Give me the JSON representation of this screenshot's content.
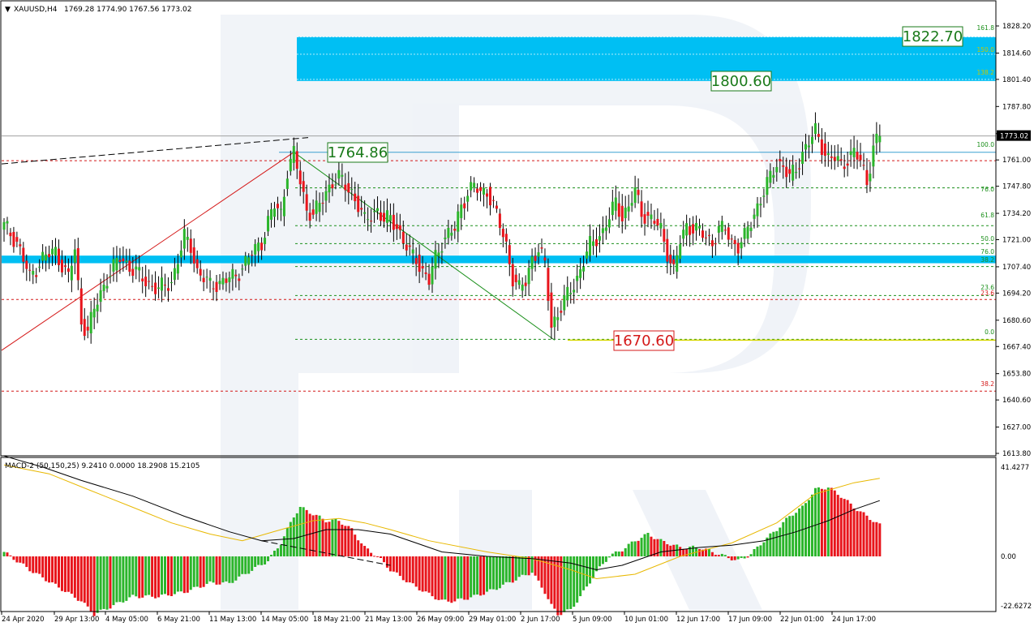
{
  "header": {
    "symbol": "XAUUSD,H4",
    "ohlc": "1769.28 1774.90 1767.56 1773.02"
  },
  "macd_header": "MACD-2 (50,150,25) 9.2410 0.0000 18.2908 15.2105",
  "colors": {
    "bull": "#2bb52b",
    "bear": "#e8141b",
    "target_zone": "#00bff3",
    "support_band": "#00bff3",
    "fib_green": "#1a8f1a",
    "fib_red": "#d41818",
    "yellow_line": "#d8d800",
    "macd_signal": "#e8b800",
    "macd_main": "#000000"
  },
  "labels": {
    "target_high": "1822.70",
    "target_low": "1800.60",
    "swing_high": "1764.86",
    "swing_low": "1670.60",
    "price_tag": "1773.02"
  },
  "fib_right_labels": [
    "161.8",
    "150.0",
    "138.2",
    "100.0",
    "76.0",
    "61.8",
    "50.0",
    "76.0",
    "38.2",
    "23.6",
    "23.6",
    "0.0",
    "38.2"
  ],
  "chart_data": {
    "type": "candlestick",
    "symbol": "XAUUSD",
    "timeframe": "H4",
    "y_ticks": [
      1828.2,
      1814.6,
      1801.4,
      1787.8,
      1774.2,
      1761.0,
      1747.8,
      1734.2,
      1721.0,
      1707.4,
      1694.2,
      1680.6,
      1667.4,
      1653.8,
      1640.6,
      1627.0,
      1613.8
    ],
    "y_tick_labels": [
      "1828.20",
      "1814.60",
      "1801.40",
      "1787.80",
      "1774.20",
      "1761.00",
      "1747.80",
      "1734.20",
      "1721.00",
      "1707.40",
      "1694.20",
      "1680.60",
      "1667.40",
      "1653.80",
      "1640.60",
      "1627.00",
      "1613.80"
    ],
    "x_labels": [
      "24 Apr 2020",
      "29 Apr 13:00",
      "4 May 05:00",
      "6 May 21:00",
      "11 May 13:00",
      "14 May 05:00",
      "18 May 21:00",
      "21 May 13:00",
      "26 May 09:00",
      "29 May 01:00",
      "2 Jun 17:00",
      "5 Jun 09:00",
      "10 Jun 01:00",
      "12 Jun 17:00",
      "17 Jun 09:00",
      "22 Jun 01:00",
      "24 Jun 17:00"
    ],
    "close_path": [
      [
        0,
        1728
      ],
      [
        4,
        1720
      ],
      [
        8,
        1702
      ],
      [
        12,
        1712
      ],
      [
        16,
        1715
      ],
      [
        20,
        1702
      ],
      [
        22,
        1716
      ],
      [
        24,
        1680
      ],
      [
        26,
        1675
      ],
      [
        28,
        1686
      ],
      [
        32,
        1702
      ],
      [
        36,
        1712
      ],
      [
        40,
        1706
      ],
      [
        44,
        1700
      ],
      [
        48,
        1696
      ],
      [
        52,
        1700
      ],
      [
        56,
        1722
      ],
      [
        58,
        1718
      ],
      [
        60,
        1705
      ],
      [
        64,
        1698
      ],
      [
        68,
        1700
      ],
      [
        72,
        1703
      ],
      [
        76,
        1712
      ],
      [
        80,
        1720
      ],
      [
        82,
        1730
      ],
      [
        84,
        1738
      ],
      [
        86,
        1734
      ],
      [
        88,
        1756
      ],
      [
        90,
        1764
      ],
      [
        92,
        1750
      ],
      [
        94,
        1736
      ],
      [
        96,
        1734
      ],
      [
        98,
        1738
      ],
      [
        100,
        1745
      ],
      [
        102,
        1750
      ],
      [
        104,
        1752
      ],
      [
        106,
        1748
      ],
      [
        108,
        1745
      ],
      [
        110,
        1738
      ],
      [
        112,
        1730
      ],
      [
        114,
        1734
      ],
      [
        116,
        1736
      ],
      [
        118,
        1730
      ],
      [
        120,
        1732
      ],
      [
        122,
        1728
      ],
      [
        124,
        1720
      ],
      [
        126,
        1714
      ],
      [
        128,
        1712
      ],
      [
        130,
        1705
      ],
      [
        132,
        1700
      ],
      [
        134,
        1712
      ],
      [
        136,
        1720
      ],
      [
        138,
        1724
      ],
      [
        140,
        1726
      ],
      [
        142,
        1738
      ],
      [
        144,
        1745
      ],
      [
        146,
        1748
      ],
      [
        148,
        1744
      ],
      [
        150,
        1746
      ],
      [
        152,
        1738
      ],
      [
        154,
        1728
      ],
      [
        156,
        1718
      ],
      [
        158,
        1702
      ],
      [
        160,
        1696
      ],
      [
        162,
        1700
      ],
      [
        164,
        1712
      ],
      [
        166,
        1716
      ],
      [
        168,
        1708
      ],
      [
        170,
        1678
      ],
      [
        172,
        1684
      ],
      [
        174,
        1690
      ],
      [
        176,
        1696
      ],
      [
        178,
        1702
      ],
      [
        180,
        1710
      ],
      [
        182,
        1718
      ],
      [
        184,
        1722
      ],
      [
        186,
        1725
      ],
      [
        188,
        1732
      ],
      [
        190,
        1740
      ],
      [
        192,
        1733
      ],
      [
        194,
        1737
      ],
      [
        196,
        1745
      ],
      [
        198,
        1735
      ],
      [
        200,
        1732
      ],
      [
        202,
        1730
      ],
      [
        204,
        1726
      ],
      [
        206,
        1715
      ],
      [
        208,
        1705
      ],
      [
        210,
        1720
      ],
      [
        212,
        1728
      ],
      [
        214,
        1727
      ],
      [
        216,
        1725
      ],
      [
        218,
        1722
      ],
      [
        220,
        1720
      ],
      [
        222,
        1726
      ],
      [
        224,
        1726
      ],
      [
        226,
        1720
      ],
      [
        228,
        1718
      ],
      [
        230,
        1722
      ],
      [
        232,
        1730
      ],
      [
        234,
        1738
      ],
      [
        236,
        1745
      ],
      [
        238,
        1752
      ],
      [
        240,
        1760
      ],
      [
        242,
        1758
      ],
      [
        244,
        1752
      ],
      [
        246,
        1756
      ],
      [
        248,
        1765
      ],
      [
        250,
        1770
      ],
      [
        252,
        1775
      ],
      [
        254,
        1768
      ],
      [
        256,
        1762
      ],
      [
        258,
        1762
      ],
      [
        260,
        1758
      ],
      [
        262,
        1762
      ],
      [
        264,
        1765
      ],
      [
        266,
        1760
      ],
      [
        268,
        1750
      ],
      [
        270,
        1768
      ],
      [
        272,
        1773
      ]
    ],
    "total_bars": 273,
    "target_zone": {
      "top": 1822.7,
      "bottom": 1800.6
    },
    "swing_high": 1764.86,
    "swing_low": 1670.6,
    "support_band": {
      "top": 1713,
      "bottom": 1710
    },
    "fib_green_levels": [
      1747.0,
      1728.0,
      1719.0,
      1707.5,
      1693.0,
      1671.0
    ],
    "fib_red_levels": [
      1760.6,
      1691.0,
      1645.0
    ],
    "macd": {
      "y_ticks": [
        41.4277,
        0.0,
        -22.6272
      ],
      "y_tick_labels": [
        "41.4277",
        "0.00",
        "-22.6272"
      ],
      "histogram": [
        [
          0,
          2
        ],
        [
          8,
          -6
        ],
        [
          16,
          -13
        ],
        [
          24,
          -20
        ],
        [
          28,
          -26
        ],
        [
          34,
          -22
        ],
        [
          40,
          -18
        ],
        [
          48,
          -18
        ],
        [
          56,
          -16
        ],
        [
          64,
          -12
        ],
        [
          70,
          -12
        ],
        [
          76,
          -7
        ],
        [
          82,
          -2
        ],
        [
          86,
          6
        ],
        [
          90,
          18
        ],
        [
          92,
          22
        ],
        [
          96,
          19
        ],
        [
          100,
          16
        ],
        [
          104,
          16
        ],
        [
          108,
          12
        ],
        [
          112,
          4
        ],
        [
          116,
          0
        ],
        [
          120,
          -6
        ],
        [
          126,
          -12
        ],
        [
          132,
          -17
        ],
        [
          136,
          -20
        ],
        [
          140,
          -20
        ],
        [
          146,
          -18
        ],
        [
          152,
          -15
        ],
        [
          158,
          -11
        ],
        [
          164,
          -7
        ],
        [
          168,
          -16
        ],
        [
          170,
          -22
        ],
        [
          172,
          -26
        ],
        [
          176,
          -24
        ],
        [
          180,
          -16
        ],
        [
          184,
          -7
        ],
        [
          188,
          0
        ],
        [
          192,
          3
        ],
        [
          196,
          7
        ],
        [
          200,
          10
        ],
        [
          204,
          7
        ],
        [
          210,
          4
        ],
        [
          216,
          4
        ],
        [
          222,
          1
        ],
        [
          228,
          -2
        ],
        [
          232,
          1
        ],
        [
          236,
          7
        ],
        [
          240,
          12
        ],
        [
          244,
          18
        ],
        [
          248,
          22
        ],
        [
          252,
          30
        ],
        [
          256,
          31
        ],
        [
          260,
          27
        ],
        [
          264,
          22
        ],
        [
          268,
          18
        ],
        [
          272,
          14
        ]
      ],
      "main_line": [
        [
          0,
          45
        ],
        [
          12,
          40
        ],
        [
          24,
          34
        ],
        [
          40,
          27
        ],
        [
          56,
          18
        ],
        [
          70,
          11
        ],
        [
          80,
          7
        ],
        [
          90,
          8
        ],
        [
          100,
          12
        ],
        [
          110,
          12
        ],
        [
          120,
          10
        ],
        [
          136,
          2
        ],
        [
          150,
          0
        ],
        [
          164,
          -1
        ],
        [
          176,
          -3
        ],
        [
          184,
          -6
        ],
        [
          192,
          -4
        ],
        [
          204,
          2
        ],
        [
          216,
          4
        ],
        [
          226,
          5
        ],
        [
          236,
          7
        ],
        [
          246,
          11
        ],
        [
          256,
          16
        ],
        [
          264,
          21
        ],
        [
          272,
          25
        ]
      ],
      "signal_line": [
        [
          0,
          41
        ],
        [
          14,
          37
        ],
        [
          26,
          30
        ],
        [
          40,
          22
        ],
        [
          52,
          15
        ],
        [
          64,
          10
        ],
        [
          74,
          7
        ],
        [
          86,
          12
        ],
        [
          96,
          16
        ],
        [
          104,
          17
        ],
        [
          112,
          15
        ],
        [
          120,
          12
        ],
        [
          132,
          7
        ],
        [
          150,
          2
        ],
        [
          164,
          -1
        ],
        [
          176,
          -6
        ],
        [
          184,
          -10
        ],
        [
          196,
          -8
        ],
        [
          210,
          0
        ],
        [
          226,
          6
        ],
        [
          240,
          15
        ],
        [
          252,
          28
        ],
        [
          264,
          33
        ],
        [
          272,
          35
        ]
      ]
    }
  }
}
